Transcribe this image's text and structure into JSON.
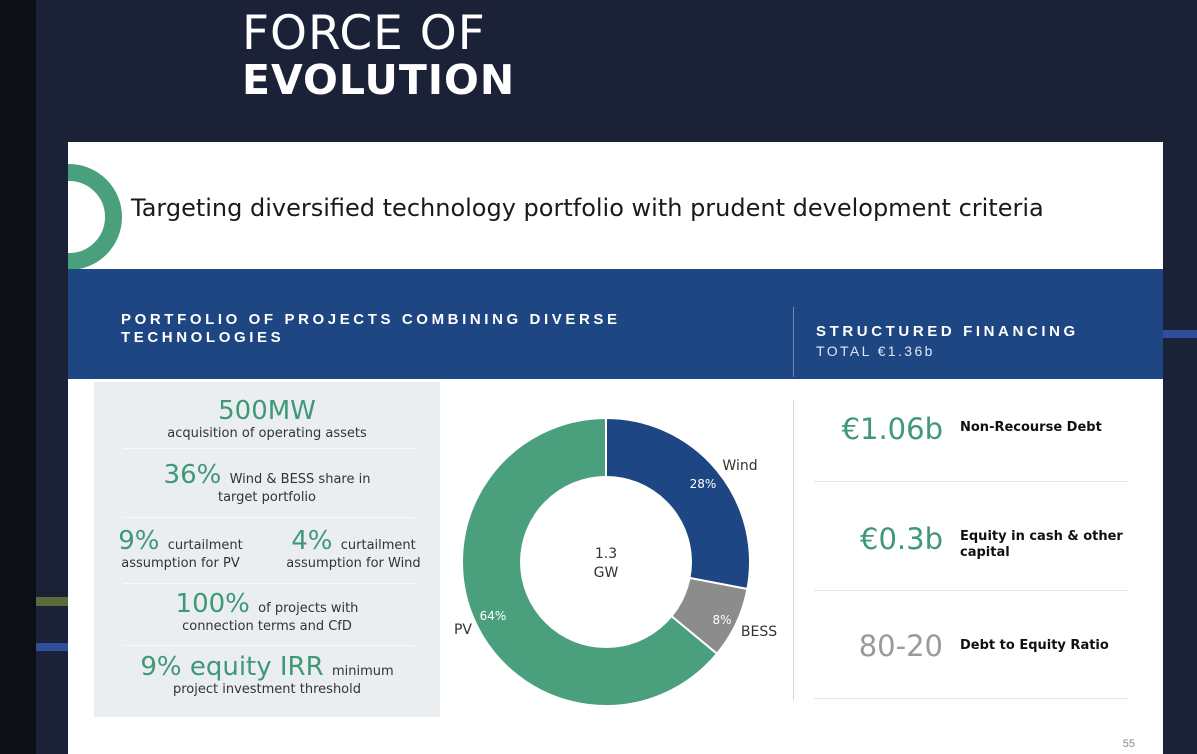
{
  "logo": {
    "line1": "FORCE OF",
    "line2": "EVOLUTION"
  },
  "headline": "Targeting diversified technology portfolio with prudent development criteria",
  "band": {
    "left_title": "PORTFOLIO OF PROJECTS COMBINING DIVERSE TECHNOLOGIES",
    "right_title": "STRUCTURED FINANCING",
    "right_subtitle": "TOTAL €1.36b"
  },
  "metrics": {
    "m1_value": "500MW",
    "m1_text": "acquisition of operating assets",
    "m2_value": "36%",
    "m2_text_a": "Wind & BESS share in",
    "m2_text_b": "target portfolio",
    "m3a_value": "9%",
    "m3a_text_a": "curtailment",
    "m3a_text_b": "assumption for PV",
    "m3b_value": "4%",
    "m3b_text_a": "curtailment",
    "m3b_text_b": "assumption for Wind",
    "m4_value": "100%",
    "m4_text_a": "of projects with",
    "m4_text_b": "connection terms and CfD",
    "m5_value": "9% equity IRR",
    "m5_text_a": "minimum",
    "m5_text_b": "project investment threshold"
  },
  "chart_data": {
    "type": "pie",
    "donut": true,
    "center_label": [
      "1.3",
      "GW"
    ],
    "slices": [
      {
        "label": "Wind",
        "value": 28,
        "value_label": "28%",
        "color": "#1e4683"
      },
      {
        "label": "BESS",
        "value": 8,
        "value_label": "8%",
        "color": "#8c8c8c"
      },
      {
        "label": "PV",
        "value": 64,
        "value_label": "64%",
        "color": "#4a9f7c"
      }
    ]
  },
  "financing": {
    "f1_amount": "€1.06b",
    "f1_label": "Non-Recourse Debt",
    "f2_amount": "€0.3b",
    "f2_label_a": "Equity in cash & other",
    "f2_label_b": "capital",
    "f3_amount": "80-20",
    "f3_label": "Debt to Equity Ratio"
  },
  "page_number": "55",
  "colors": {
    "navy_band": "#1e4683",
    "green": "#4a9f7c",
    "grey": "#8c8c8c",
    "background": "#1b2136"
  }
}
